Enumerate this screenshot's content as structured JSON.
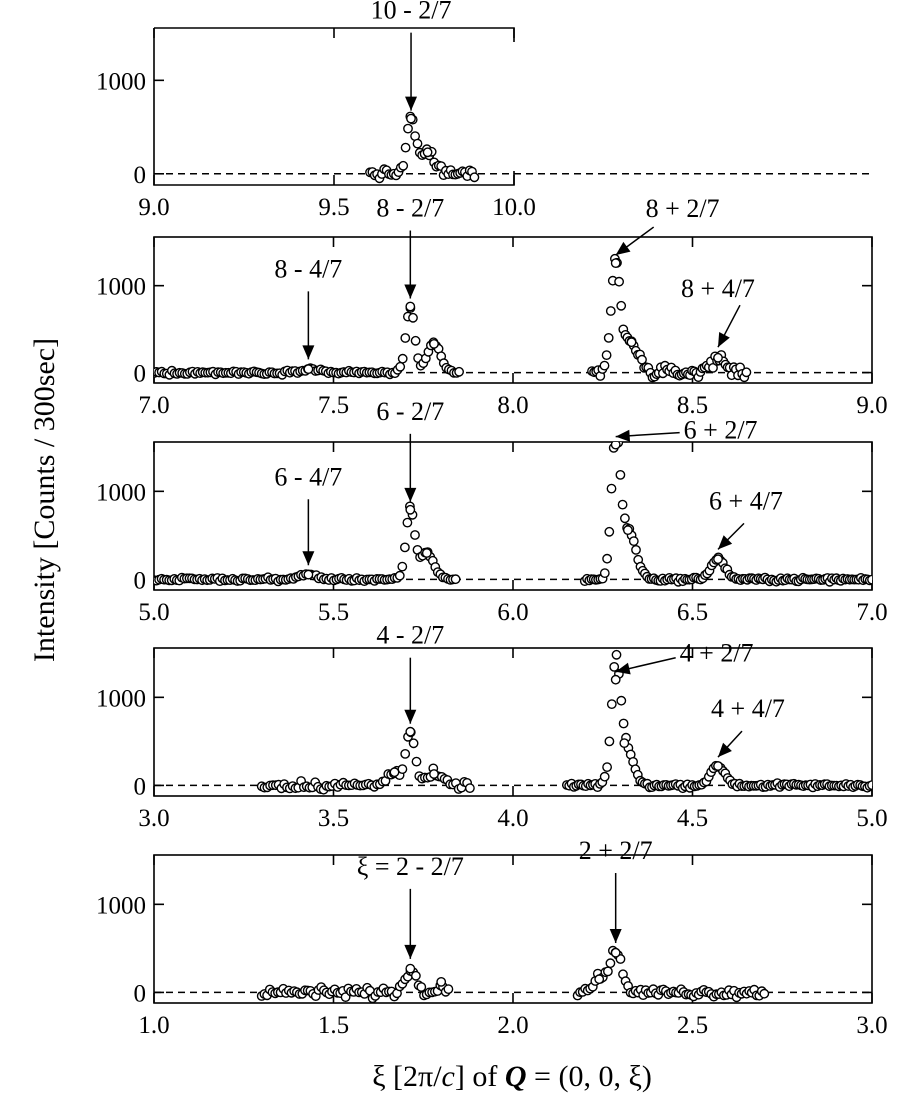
{
  "figure": {
    "ylabel": "Intensity [Counts / 300sec]",
    "xlabel": {
      "pre": "ξ [2π/",
      "c": "c",
      "mid": "] of ",
      "Q": "Q",
      "post": " = (0, 0, ξ)"
    }
  },
  "chart_data": [
    {
      "type": "scatter",
      "title": "",
      "xlim": [
        9.0,
        10.0
      ],
      "ylim": [
        -120,
        1560
      ],
      "xticks": [
        9.0,
        9.5,
        10.0
      ],
      "xtick_labels": [
        "9.0",
        "9.5",
        "10.0"
      ],
      "yticks": [
        0,
        1000
      ],
      "ytick_labels": [
        "0",
        "1000"
      ],
      "grid": false,
      "axis_style": "left-bottom-only, partial",
      "annotations": [
        {
          "label": "10 - 2/7",
          "x": 9.714,
          "y": 590
        }
      ],
      "segments": [
        {
          "x": [
            9.6,
            9.89
          ],
          "peaks": [
            {
              "x": 9.714,
              "y": 590,
              "w": 0.012
            },
            {
              "x": 9.76,
              "y": 230,
              "w": 0.02
            }
          ],
          "noise": 45,
          "n": 45
        }
      ]
    },
    {
      "type": "scatter",
      "title": "",
      "xlim": [
        7.0,
        9.0
      ],
      "ylim": [
        -120,
        1560
      ],
      "xticks": [
        7.0,
        7.5,
        8.0,
        8.5,
        9.0
      ],
      "xtick_labels": [
        "7.0",
        "7.5",
        "8.0",
        "8.5",
        "9.0"
      ],
      "yticks": [
        0,
        1000
      ],
      "ytick_labels": [
        "0",
        "1000"
      ],
      "grid": false,
      "axis_style": "full-frame",
      "annotations": [
        {
          "label": "8 - 4/7",
          "x": 7.43,
          "y": 60
        },
        {
          "label": "8 - 2/7",
          "x": 7.714,
          "y": 760
        },
        {
          "label": "8 + 2/7",
          "x": 8.286,
          "y": 1260
        },
        {
          "label": "8 + 4/7",
          "x": 8.571,
          "y": 200
        }
      ],
      "segments": [
        {
          "x": [
            7.0,
            7.85
          ],
          "peaks": [
            {
              "x": 7.714,
              "y": 760,
              "w": 0.012
            },
            {
              "x": 7.78,
              "y": 330,
              "w": 0.018
            },
            {
              "x": 7.43,
              "y": 40,
              "w": 0.03
            }
          ],
          "noise": 20,
          "n": 120
        },
        {
          "x": [
            8.22,
            8.65
          ],
          "peaks": [
            {
              "x": 8.286,
              "y": 1260,
              "w": 0.013
            },
            {
              "x": 8.33,
              "y": 350,
              "w": 0.02
            },
            {
              "x": 8.571,
              "y": 170,
              "w": 0.02
            }
          ],
          "noise": 60,
          "n": 75
        }
      ]
    },
    {
      "type": "scatter",
      "title": "",
      "xlim": [
        5.0,
        7.0
      ],
      "ylim": [
        -120,
        1560
      ],
      "xticks": [
        5.0,
        5.5,
        6.0,
        6.5,
        7.0
      ],
      "xtick_labels": [
        "5.0",
        "5.5",
        "6.0",
        "6.5",
        "7.0"
      ],
      "yticks": [
        0,
        1000
      ],
      "ytick_labels": [
        "0",
        "1000"
      ],
      "grid": false,
      "axis_style": "full-frame",
      "annotations": [
        {
          "label": "6 - 4/7",
          "x": 5.43,
          "y": 70
        },
        {
          "label": "6 - 2/7",
          "x": 5.714,
          "y": 790
        },
        {
          "label": "6 + 2/7",
          "x": 6.286,
          "y": 1530
        },
        {
          "label": "6 + 4/7",
          "x": 6.571,
          "y": 250
        }
      ],
      "segments": [
        {
          "x": [
            5.0,
            5.84
          ],
          "peaks": [
            {
              "x": 5.714,
              "y": 790,
              "w": 0.012
            },
            {
              "x": 5.76,
              "y": 300,
              "w": 0.02
            },
            {
              "x": 5.43,
              "y": 55,
              "w": 0.025
            }
          ],
          "noise": 18,
          "n": 120
        },
        {
          "x": [
            6.2,
            7.0
          ],
          "peaks": [
            {
              "x": 6.286,
              "y": 1530,
              "w": 0.012
            },
            {
              "x": 6.32,
              "y": 560,
              "w": 0.022
            },
            {
              "x": 6.571,
              "y": 230,
              "w": 0.02
            }
          ],
          "noise": 20,
          "n": 130
        }
      ]
    },
    {
      "type": "scatter",
      "title": "",
      "xlim": [
        3.0,
        5.0
      ],
      "ylim": [
        -120,
        1560
      ],
      "xticks": [
        3.0,
        3.5,
        4.0,
        4.5,
        5.0
      ],
      "xtick_labels": [
        "3.0",
        "3.5",
        "4.0",
        "4.5",
        "5.0"
      ],
      "yticks": [
        0,
        1000
      ],
      "ytick_labels": [
        "0",
        "1000"
      ],
      "grid": false,
      "axis_style": "full-frame",
      "annotations": [
        {
          "label": "4 - 2/7",
          "x": 3.714,
          "y": 610
        },
        {
          "label": "4 + 2/7",
          "x": 4.286,
          "y": 1200
        },
        {
          "label": "4 + 4/7",
          "x": 4.571,
          "y": 230
        }
      ],
      "segments": [
        {
          "x": [
            3.3,
            3.88
          ],
          "peaks": [
            {
              "x": 3.714,
              "y": 610,
              "w": 0.013
            },
            {
              "x": 3.67,
              "y": 150,
              "w": 0.02
            },
            {
              "x": 3.78,
              "y": 130,
              "w": 0.02
            }
          ],
          "noise": 45,
          "n": 75
        },
        {
          "x": [
            4.15,
            5.0
          ],
          "peaks": [
            {
              "x": 4.286,
              "y": 1200,
              "w": 0.012
            },
            {
              "x": 4.31,
              "y": 480,
              "w": 0.022
            },
            {
              "x": 4.571,
              "y": 220,
              "w": 0.02
            }
          ],
          "noise": 22,
          "n": 130
        }
      ]
    },
    {
      "type": "scatter",
      "title": "",
      "xlim": [
        1.0,
        3.0
      ],
      "ylim": [
        -120,
        1560
      ],
      "xticks": [
        1.0,
        1.5,
        2.0,
        2.5,
        3.0
      ],
      "xtick_labels": [
        "1.0",
        "1.5",
        "2.0",
        "2.5",
        "3.0"
      ],
      "yticks": [
        0,
        1000
      ],
      "ytick_labels": [
        "0",
        "1000"
      ],
      "grid": false,
      "axis_style": "full-frame",
      "annotations": [
        {
          "label": "ξ = 2 - 2/7",
          "x": 1.714,
          "y": 290
        },
        {
          "label": "2 + 2/7",
          "x": 2.286,
          "y": 470
        }
      ],
      "segments": [
        {
          "x": [
            1.3,
            1.82
          ],
          "peaks": [
            {
              "x": 1.714,
              "y": 270,
              "w": 0.015
            },
            {
              "x": 1.8,
              "y": 120,
              "w": 0.012
            }
          ],
          "noise": 55,
          "n": 70
        },
        {
          "x": [
            2.18,
            2.7
          ],
          "peaks": [
            {
              "x": 2.286,
              "y": 450,
              "w": 0.018
            },
            {
              "x": 2.24,
              "y": 150,
              "w": 0.02
            }
          ],
          "noise": 45,
          "n": 75
        }
      ]
    }
  ]
}
